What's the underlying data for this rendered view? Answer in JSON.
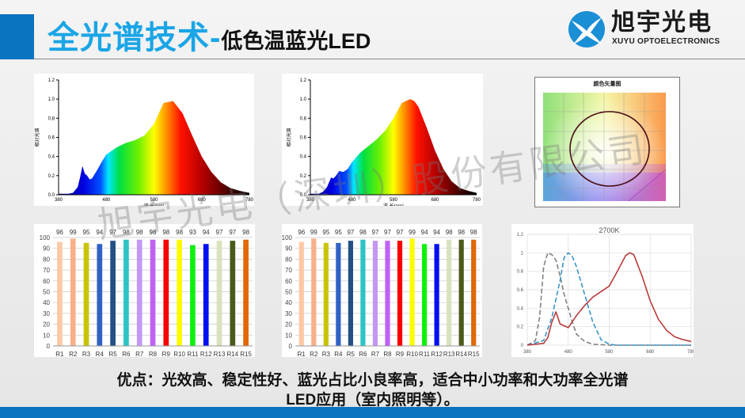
{
  "header": {
    "title_main": "全光谱技术-",
    "title_sub": "低色温蓝光LED",
    "logo_cn": "旭宇光电",
    "logo_en": "XUYU OPTOELECTRONICS",
    "accent_color": "#0b74c0",
    "title_color": "#1aa5e6"
  },
  "watermark": "旭宇光电（深圳）股份有限公司",
  "caption": {
    "line1": "优点：光效高、稳定性好、蓝光占比小良率高，适合中小功率和大功率全光谱",
    "line2": "LED应用（室内照明等）。"
  },
  "chart_data": [
    {
      "type": "area",
      "id": "spectrum-1",
      "title": "",
      "xlabel": "波 长(nm)",
      "ylabel": "相对光谱",
      "xlim": [
        380,
        780
      ],
      "ylim": [
        0,
        1.2
      ],
      "xticks": [
        "380",
        "480",
        "580",
        "680",
        "780"
      ],
      "yticks": [
        "0.0",
        "0.2",
        "0.4",
        "0.6",
        "0.8",
        "1.0",
        "1.2"
      ],
      "x": [
        380,
        400,
        410,
        420,
        425,
        430,
        435,
        440,
        445,
        450,
        460,
        470,
        480,
        500,
        520,
        540,
        560,
        580,
        590,
        600,
        620,
        640,
        660,
        680,
        700,
        720,
        740,
        760,
        780
      ],
      "values": [
        0.01,
        0.01,
        0.02,
        0.08,
        0.18,
        0.3,
        0.22,
        0.2,
        0.16,
        0.17,
        0.25,
        0.34,
        0.42,
        0.49,
        0.54,
        0.57,
        0.62,
        0.74,
        0.85,
        0.96,
        0.98,
        0.85,
        0.62,
        0.4,
        0.24,
        0.13,
        0.07,
        0.04,
        0.02
      ]
    },
    {
      "type": "area",
      "id": "spectrum-2",
      "title": "",
      "xlabel": "波 长(nm)",
      "ylabel": "相对光谱",
      "xlim": [
        380,
        780
      ],
      "ylim": [
        0,
        1.2
      ],
      "xticks": [
        "380",
        "480",
        "580",
        "680",
        "780"
      ],
      "yticks": [
        "0.0",
        "0.2",
        "0.4",
        "0.6",
        "0.8",
        "1.0",
        "1.2"
      ],
      "x": [
        380,
        400,
        410,
        420,
        430,
        435,
        440,
        450,
        455,
        460,
        470,
        480,
        500,
        520,
        540,
        560,
        580,
        600,
        620,
        630,
        640,
        660,
        680,
        700,
        720,
        740,
        760,
        780
      ],
      "values": [
        0.01,
        0.01,
        0.03,
        0.08,
        0.18,
        0.17,
        0.19,
        0.25,
        0.24,
        0.24,
        0.27,
        0.34,
        0.44,
        0.51,
        0.58,
        0.67,
        0.8,
        0.96,
        1.0,
        0.98,
        0.92,
        0.7,
        0.46,
        0.27,
        0.14,
        0.07,
        0.04,
        0.02
      ]
    },
    {
      "type": "scatter",
      "id": "color-vector-graph",
      "title": "颜色矢量图",
      "description": "Color vector diagram with near-circular sample ring"
    },
    {
      "type": "bar",
      "id": "cri-1",
      "categories": [
        "R1",
        "R2",
        "R3",
        "R4",
        "R5",
        "R6",
        "R7",
        "R8",
        "R9",
        "R10",
        "R11",
        "R12",
        "R13",
        "R14",
        "R15"
      ],
      "values": [
        96,
        99,
        95,
        94,
        97,
        98,
        98,
        98,
        98,
        98,
        93,
        94,
        97,
        97,
        98
      ],
      "colors": [
        "#fcc9a5",
        "#f8b088",
        "#c8c400",
        "#2f62c4",
        "#234f85",
        "#2cc4c4",
        "#c497f5",
        "#c061f4",
        "#f80000",
        "#fcfc00",
        "#10f010",
        "#0010f0",
        "#d8e2bc",
        "#4a5a1c",
        "#e06808"
      ],
      "ylim": [
        0,
        100
      ],
      "yticks": [
        "0",
        "10",
        "20",
        "30",
        "40",
        "50",
        "60",
        "70",
        "80",
        "90",
        "100"
      ]
    },
    {
      "type": "bar",
      "id": "cri-2",
      "categories": [
        "R1",
        "R2",
        "R3",
        "R4",
        "R5",
        "R6",
        "R7",
        "R8",
        "R9",
        "R10",
        "R11",
        "R12",
        "R13",
        "R14",
        "R15"
      ],
      "values": [
        96,
        99,
        95,
        95,
        97,
        98,
        97,
        97,
        97,
        99,
        94,
        94,
        98,
        98,
        98
      ],
      "colors": [
        "#fcc9a5",
        "#f8b088",
        "#c8c400",
        "#2f62c4",
        "#234f85",
        "#2cc4c4",
        "#c497f5",
        "#c061f4",
        "#f80000",
        "#fcfc00",
        "#10f010",
        "#0010f0",
        "#d8e2bc",
        "#4a5a1c",
        "#e06808"
      ],
      "ylim": [
        0,
        100
      ],
      "yticks": [
        "0",
        "10",
        "20",
        "30",
        "40",
        "50",
        "60",
        "70",
        "80",
        "90",
        "100"
      ]
    },
    {
      "type": "line",
      "id": "spectrum-2700k",
      "title": "2700K",
      "xlim": [
        380,
        780
      ],
      "ylim": [
        0,
        1.2
      ],
      "xticks": [
        "380",
        "480",
        "580",
        "680",
        "780"
      ],
      "yticks": [
        "0",
        "0.2",
        "0.4",
        "0.6",
        "0.8",
        "1",
        "1.2"
      ],
      "series": [
        {
          "name": "gray-dashed",
          "color": "#808080",
          "style": "dashed",
          "x": [
            380,
            400,
            410,
            420,
            430,
            440,
            450,
            460,
            470,
            480,
            490,
            500,
            520,
            540,
            580,
            780
          ],
          "values": [
            0.0,
            0.05,
            0.3,
            0.85,
            1.0,
            0.98,
            0.92,
            0.75,
            0.55,
            0.4,
            0.25,
            0.12,
            0.04,
            0.01,
            0.0,
            0.0
          ]
        },
        {
          "name": "blue-dashed",
          "color": "#3b95c8",
          "style": "dashed",
          "x": [
            380,
            420,
            440,
            460,
            470,
            480,
            490,
            500,
            520,
            540,
            560,
            580,
            600,
            780
          ],
          "values": [
            0.0,
            0.05,
            0.3,
            0.7,
            0.95,
            1.0,
            0.96,
            0.85,
            0.55,
            0.25,
            0.06,
            0.01,
            0.0,
            0.0
          ]
        },
        {
          "name": "red-solid",
          "color": "#b83b3b",
          "style": "solid",
          "x": [
            380,
            420,
            430,
            440,
            450,
            460,
            470,
            480,
            500,
            520,
            540,
            560,
            580,
            600,
            620,
            630,
            640,
            660,
            680,
            700,
            720,
            740,
            760,
            780
          ],
          "values": [
            0.0,
            0.02,
            0.08,
            0.25,
            0.36,
            0.23,
            0.21,
            0.19,
            0.32,
            0.43,
            0.52,
            0.58,
            0.64,
            0.8,
            0.97,
            1.0,
            0.98,
            0.75,
            0.48,
            0.28,
            0.16,
            0.09,
            0.06,
            0.04
          ]
        }
      ]
    }
  ]
}
